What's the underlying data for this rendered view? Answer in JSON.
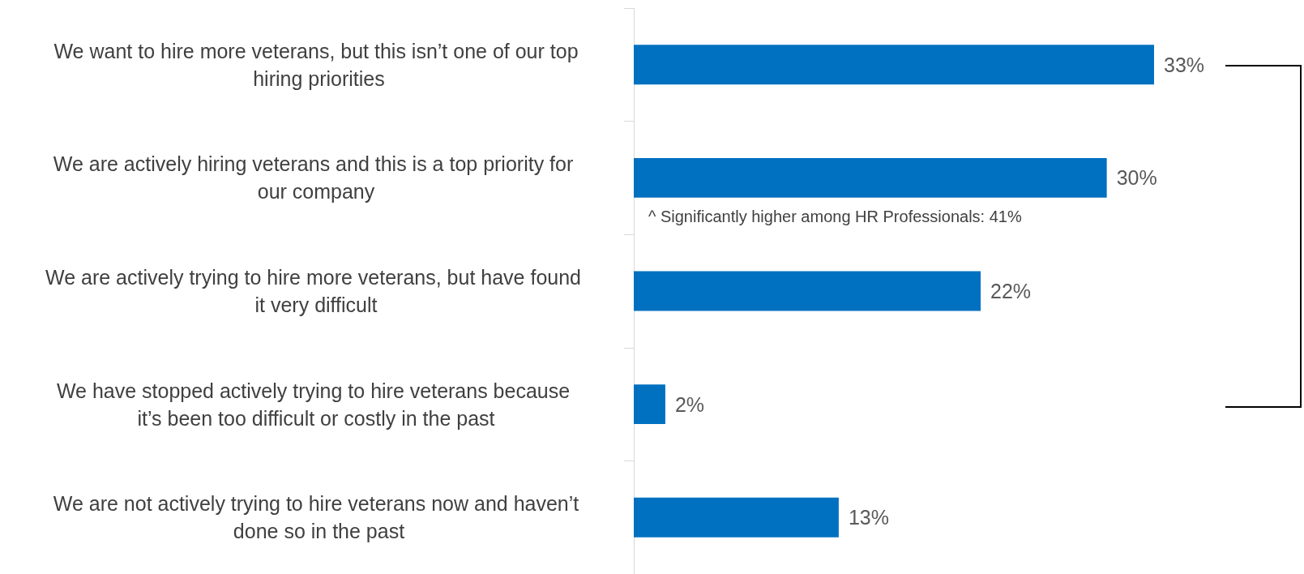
{
  "chart_data": {
    "type": "bar",
    "orientation": "horizontal",
    "categories": [
      "We want to hire more veterans, but this isn’t one of our top hiring priorities",
      "We are actively hiring veterans and this is a top priority for our company",
      "We are actively trying to hire more veterans, but have found it very difficult",
      "We have stopped actively trying to hire veterans because it’s been too difficult or costly in the past",
      "We are not actively trying to hire veterans now and haven’t done so in the past"
    ],
    "values": [
      33,
      30,
      22,
      2,
      13
    ],
    "value_labels": [
      "33%",
      "30%",
      "22%",
      "2%",
      "13%"
    ],
    "color": "#0070c0",
    "annotations": [
      "^ Significantly higher among HR Professionals: 41%"
    ]
  }
}
